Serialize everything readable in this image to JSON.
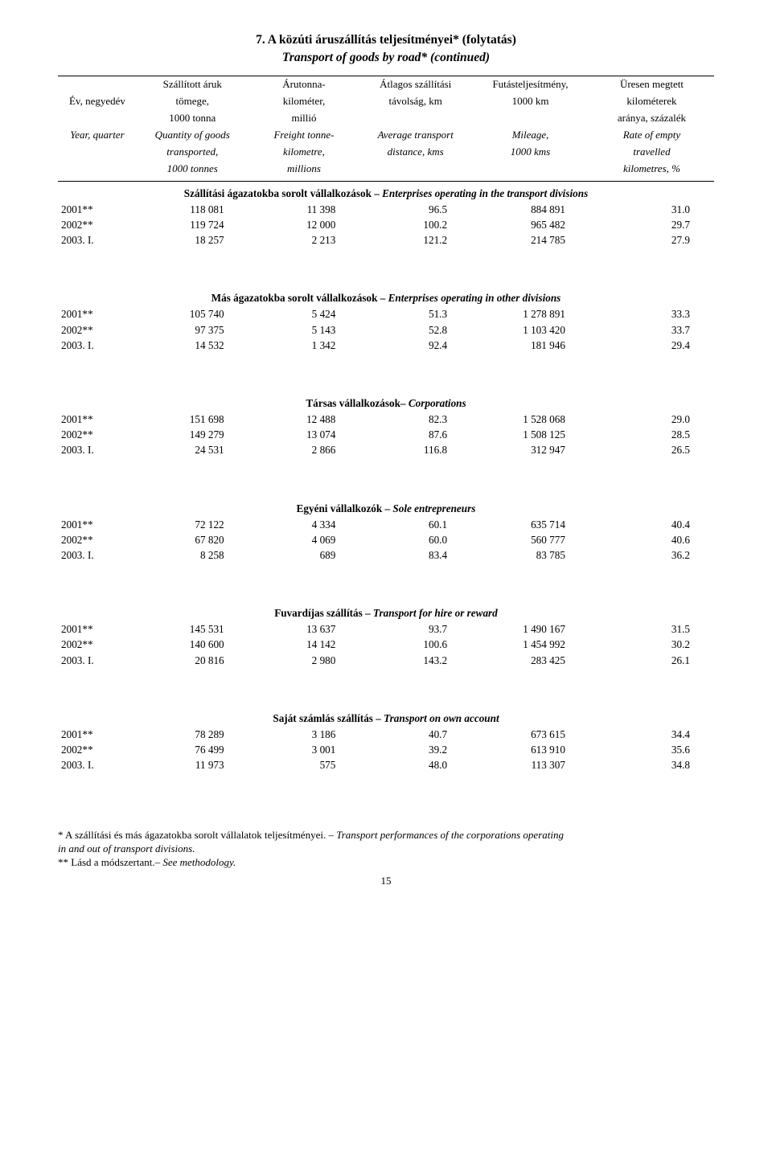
{
  "page_title_line1": "7. A közúti áruszállítás teljesítményei* (folytatás)",
  "page_title_line2": "Transport of goods by road* (continued)",
  "header": {
    "col0": {
      "l0": "",
      "l1": "Év, negyedév",
      "l2": "",
      "l3": "Year, quarter",
      "l4": "",
      "l5": ""
    },
    "col1": {
      "l0": "Szállított áruk",
      "l1": "tömege,",
      "l2": "1000 tonna",
      "l3": "Quantity of goods",
      "l4": "transported,",
      "l5": "1000 tonnes"
    },
    "col2": {
      "l0": "Árutonna-",
      "l1": "kilométer,",
      "l2": "millió",
      "l3": "Freight tonne-",
      "l4": "kilometre,",
      "l5": "millions"
    },
    "col3": {
      "l0": "Átlagos szállítási",
      "l1": "távolság, km",
      "l2": "",
      "l3": "Average transport",
      "l4": "distance, kms",
      "l5": ""
    },
    "col4": {
      "l0": "Futásteljesítmény,",
      "l1": "1000 km",
      "l2": "",
      "l3": "Mileage,",
      "l4": "1000 kms",
      "l5": ""
    },
    "col5": {
      "l0": "Üresen megtett",
      "l1": "kilométerek",
      "l2": "aránya, százalék",
      "l3": "Rate of empty",
      "l4": "travelled",
      "l5": "kilometres, %"
    }
  },
  "section1": {
    "title_hu": "Szállítási ágazatokba sorolt vállalkozások",
    "title_en": "Enterprises operating in the transport divisions",
    "rows": [
      {
        "c0": "2001**",
        "c1": "118 081",
        "c2": "11 398",
        "c3": "96.5",
        "c4": "884 891",
        "c5": "31.0"
      },
      {
        "c0": "2002**",
        "c1": "119 724",
        "c2": "12 000",
        "c3": "100.2",
        "c4": "965 482",
        "c5": "29.7"
      },
      {
        "c0": "2003.    I.",
        "c1": "18 257",
        "c2": "2 213",
        "c3": "121.2",
        "c4": "214 785",
        "c5": "27.9"
      }
    ]
  },
  "section2": {
    "title_hu": "Más ágazatokba sorolt vállalkozások",
    "title_en": "Enterprises operating in other divisions",
    "rows": [
      {
        "c0": "2001**",
        "c1": "105 740",
        "c2": "5 424",
        "c3": "51.3",
        "c4": "1 278 891",
        "c5": "33.3"
      },
      {
        "c0": "2002**",
        "c1": "97 375",
        "c2": "5 143",
        "c3": "52.8",
        "c4": "1 103 420",
        "c5": "33.7"
      },
      {
        "c0": "2003.    I.",
        "c1": "14 532",
        "c2": "1 342",
        "c3": "92.4",
        "c4": "181 946",
        "c5": "29.4"
      }
    ]
  },
  "section3": {
    "title_hu": "Társas vállalkozások–",
    "title_en": "Corporations",
    "rows": [
      {
        "c0": "2001**",
        "c1": "151 698",
        "c2": "12 488",
        "c3": "82.3",
        "c4": "1 528 068",
        "c5": "29.0"
      },
      {
        "c0": "2002**",
        "c1": "149 279",
        "c2": "13 074",
        "c3": "87.6",
        "c4": "1 508 125",
        "c5": "28.5"
      },
      {
        "c0": "2003.    I.",
        "c1": "24 531",
        "c2": "2 866",
        "c3": "116.8",
        "c4": "312 947",
        "c5": "26.5"
      }
    ]
  },
  "section4": {
    "title_hu": "Egyéni vállalkozók –",
    "title_en": "Sole entrepreneurs",
    "rows": [
      {
        "c0": "2001**",
        "c1": "72 122",
        "c2": "4 334",
        "c3": "60.1",
        "c4": "635 714",
        "c5": "40.4"
      },
      {
        "c0": "2002**",
        "c1": "67 820",
        "c2": "4 069",
        "c3": "60.0",
        "c4": "560 777",
        "c5": "40.6"
      },
      {
        "c0": "2003.    I.",
        "c1": "8 258",
        "c2": "689",
        "c3": "83.4",
        "c4": "83 785",
        "c5": "36.2"
      }
    ]
  },
  "section5": {
    "title_hu": "Fuvardíjas szállítás –",
    "title_en": "Transport for hire or reward",
    "rows": [
      {
        "c0": "2001**",
        "c1": "145 531",
        "c2": "13 637",
        "c3": "93.7",
        "c4": "1 490 167",
        "c5": "31.5"
      },
      {
        "c0": "2002**",
        "c1": "140 600",
        "c2": "14 142",
        "c3": "100.6",
        "c4": "1 454 992",
        "c5": "30.2"
      },
      {
        "c0": "2003.    I.",
        "c1": "20 816",
        "c2": "2 980",
        "c3": "143.2",
        "c4": "283 425",
        "c5": "26.1"
      }
    ]
  },
  "section6": {
    "title_hu": "Saját számlás szállítás –",
    "title_en": "Transport on own account",
    "rows": [
      {
        "c0": "2001**",
        "c1": "78 289",
        "c2": "3 186",
        "c3": "40.7",
        "c4": "673 615",
        "c5": "34.4"
      },
      {
        "c0": "2002**",
        "c1": "76 499",
        "c2": "3 001",
        "c3": "39.2",
        "c4": "613 910",
        "c5": "35.6"
      },
      {
        "c0": "2003.    I.",
        "c1": "11 973",
        "c2": "575",
        "c3": "48.0",
        "c4": "113 307",
        "c5": "34.8"
      }
    ]
  },
  "footnotes": {
    "f1_hu": "*   A szállítási és más ágazatokba sorolt vállalatok teljesítményei. –",
    "f1_en": " Transport performances of the corporations operating",
    "f1b_en": "in and out of transport divisions.",
    "f2_hu": "** Lásd a módszertant.–",
    "f2_en": " See methodology."
  },
  "page_number": "15"
}
